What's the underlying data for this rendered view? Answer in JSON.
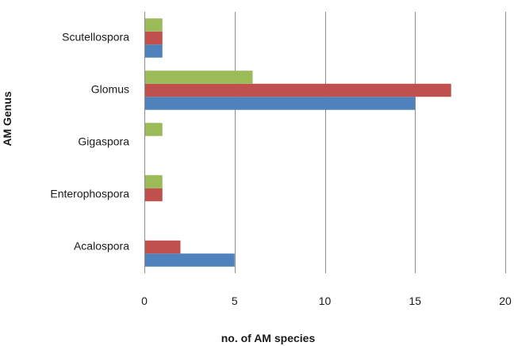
{
  "chart_data": {
    "type": "bar",
    "orientation": "horizontal",
    "categories": [
      "Acalospora",
      "Enterophospora",
      "Gigaspora",
      "Glomus",
      "Scutellospora"
    ],
    "series": [
      {
        "color": "#4f81bd",
        "values": [
          5,
          0,
          0,
          15,
          1
        ]
      },
      {
        "color": "#c0504d",
        "values": [
          2,
          1,
          0,
          17,
          1
        ]
      },
      {
        "color": "#9bbb59",
        "values": [
          0,
          1,
          1,
          6,
          1
        ]
      }
    ],
    "title": "",
    "xlabel": "no. of AM species",
    "ylabel": "AM Genus",
    "xlim": [
      0,
      20
    ],
    "xticks": [
      "0",
      "5",
      "10",
      "15",
      "20"
    ],
    "grid": "vertical",
    "legend": "none"
  }
}
